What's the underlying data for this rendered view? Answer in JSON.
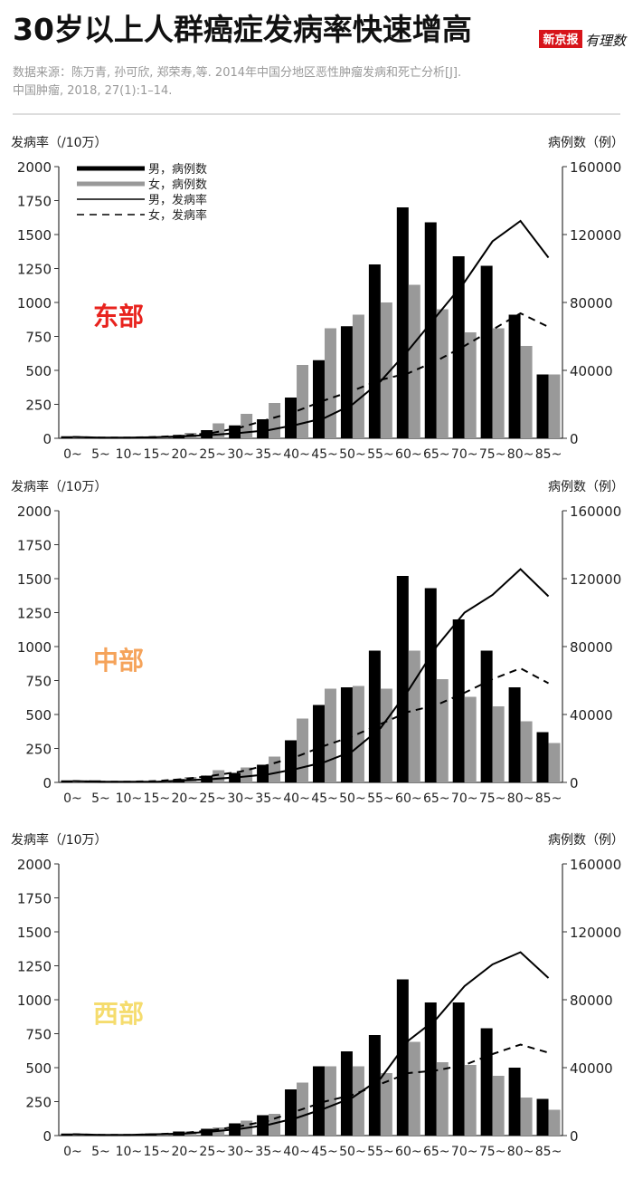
{
  "header": {
    "title": "30岁以上人群癌症发病率快速增高",
    "logo_left": "新京报",
    "logo_right": "有理数",
    "source": [
      "数据来源：陈万青, 孙可欣, 郑荣寿,等. 2014年中国分地区恶性肿瘤发病和死亡分析[J].",
      "中国肿瘤, 2018, 27(1):1–14."
    ]
  },
  "chart_data": [
    {
      "type": "bar_line",
      "annotation": {
        "text": "东部",
        "color": "#e8231e"
      },
      "ylabel": "发病率（/10万）",
      "y2label": "病例数（例）",
      "legend": "upper left",
      "categories": [
        "0~",
        "5~",
        "10~",
        "15~",
        "20~",
        "25~",
        "30~",
        "35~",
        "40~",
        "45~",
        "50~",
        "55~",
        "60~",
        "65~",
        "70~",
        "75~",
        "80~",
        "85~"
      ],
      "ylim": [
        0,
        2000
      ],
      "yticks": [
        0,
        250,
        500,
        750,
        1000,
        1250,
        1500,
        1750,
        2000
      ],
      "y2lim": [
        0,
        160000
      ],
      "y2ticks": [
        0,
        40000,
        80000,
        120000,
        160000
      ],
      "series": [
        {
          "name": "男，病例数",
          "kind": "bar",
          "axis": "y2",
          "color": "#000000",
          "values": [
            1200,
            400,
            400,
            640,
            2000,
            4800,
            7600,
            11200,
            24000,
            46000,
            66000,
            102400,
            136000,
            127200,
            107200,
            101600,
            72800,
            37600
          ]
        },
        {
          "name": "女，病例数",
          "kind": "bar",
          "axis": "y2",
          "color": "#999999",
          "values": [
            800,
            400,
            400,
            800,
            3200,
            8800,
            14400,
            20800,
            43200,
            64800,
            72800,
            80000,
            90400,
            76000,
            62400,
            64800,
            54400,
            37600
          ]
        },
        {
          "name": "男，发病率",
          "kind": "line",
          "dash": false,
          "color": "#000000",
          "values": [
            10,
            5,
            5,
            8,
            15,
            25,
            40,
            60,
            100,
            150,
            250,
            420,
            650,
            900,
            1150,
            1450,
            1600,
            1330
          ]
        },
        {
          "name": "女，发病率",
          "kind": "line",
          "dash": true,
          "color": "#000000",
          "values": [
            10,
            5,
            5,
            10,
            20,
            40,
            80,
            140,
            200,
            280,
            350,
            430,
            480,
            570,
            680,
            800,
            920,
            820
          ]
        }
      ]
    },
    {
      "type": "bar_line",
      "annotation": {
        "text": "中部",
        "color": "#f5a35a"
      },
      "ylabel": "发病率（/10万）",
      "y2label": "病例数（例）",
      "categories": [
        "0~",
        "5~",
        "10~",
        "15~",
        "20~",
        "25~",
        "30~",
        "35~",
        "40~",
        "45~",
        "50~",
        "55~",
        "60~",
        "65~",
        "70~",
        "75~",
        "80~",
        "85~"
      ],
      "ylim": [
        0,
        2000
      ],
      "yticks": [
        0,
        250,
        500,
        750,
        1000,
        1250,
        1500,
        1750,
        2000
      ],
      "y2lim": [
        0,
        160000
      ],
      "y2ticks": [
        0,
        40000,
        80000,
        120000,
        160000
      ],
      "series": [
        {
          "kind": "bar",
          "axis": "y2",
          "color": "#000000",
          "values": [
            1200,
            1200,
            400,
            400,
            2000,
            4000,
            5600,
            10400,
            24800,
            45600,
            56000,
            77600,
            121600,
            114400,
            96000,
            77600,
            56000,
            29600
          ]
        },
        {
          "kind": "bar",
          "axis": "y2",
          "color": "#999999",
          "values": [
            800,
            800,
            400,
            400,
            3200,
            7200,
            8800,
            15200,
            37600,
            55200,
            56800,
            55200,
            77600,
            60800,
            50400,
            44800,
            36000,
            23200
          ]
        },
        {
          "kind": "line",
          "dash": false,
          "color": "#000000",
          "values": [
            10,
            5,
            5,
            5,
            15,
            25,
            40,
            60,
            100,
            150,
            230,
            400,
            680,
            1000,
            1250,
            1380,
            1570,
            1370
          ]
        },
        {
          "kind": "line",
          "dash": true,
          "color": "#000000",
          "values": [
            10,
            5,
            5,
            10,
            25,
            50,
            80,
            130,
            190,
            270,
            340,
            430,
            520,
            570,
            660,
            760,
            840,
            730
          ]
        }
      ]
    },
    {
      "type": "bar_line",
      "annotation": {
        "text": "西部",
        "color": "#f5dc6e"
      },
      "ylabel": "发病率（/10万）",
      "y2label": "病例数（例）",
      "categories": [
        "0~",
        "5~",
        "10~",
        "15~",
        "20~",
        "25~",
        "30~",
        "35~",
        "40~",
        "45~",
        "50~",
        "55~",
        "60~",
        "65~",
        "70~",
        "75~",
        "80~",
        "85~"
      ],
      "ylim": [
        0,
        2000
      ],
      "yticks": [
        0,
        250,
        500,
        750,
        1000,
        1250,
        1500,
        1750,
        2000
      ],
      "y2lim": [
        0,
        160000
      ],
      "y2ticks": [
        0,
        40000,
        80000,
        120000,
        160000
      ],
      "series": [
        {
          "kind": "bar",
          "axis": "y2",
          "color": "#000000",
          "values": [
            1200,
            400,
            400,
            1200,
            2400,
            4000,
            7200,
            12000,
            27200,
            40800,
            49600,
            59200,
            92000,
            78400,
            78400,
            63200,
            40000,
            21600
          ]
        },
        {
          "kind": "bar",
          "axis": "y2",
          "color": "#999999",
          "values": [
            800,
            400,
            400,
            1200,
            2400,
            4800,
            8800,
            12800,
            31200,
            40800,
            40800,
            36800,
            55200,
            43200,
            41600,
            35200,
            22400,
            15200
          ]
        },
        {
          "kind": "line",
          "dash": false,
          "color": "#000000",
          "values": [
            10,
            5,
            5,
            10,
            15,
            30,
            50,
            80,
            130,
            200,
            280,
            420,
            700,
            860,
            1100,
            1260,
            1350,
            1160
          ]
        },
        {
          "kind": "line",
          "dash": true,
          "color": "#000000",
          "values": [
            10,
            5,
            5,
            10,
            20,
            40,
            70,
            110,
            180,
            250,
            300,
            380,
            460,
            480,
            520,
            600,
            670,
            610
          ]
        }
      ]
    }
  ]
}
